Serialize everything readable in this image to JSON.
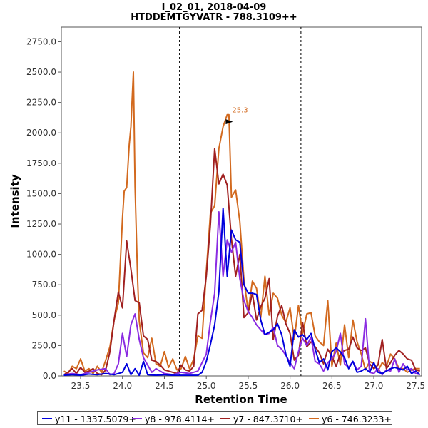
{
  "title": {
    "line1": "I_02_01, 2018-04-09",
    "line2": "HTDDEMTGYVATR - 788.3109++"
  },
  "colors": {
    "y11": "#0000dd",
    "y8": "#8a2be2",
    "y7": "#a02020",
    "y6": "#d2691e",
    "frame": "#555555",
    "marker_lines": "#000000"
  },
  "chart_data": {
    "type": "line",
    "title": "I_02_01, 2018-04-09 / HTDDEMTGYVATR - 788.3109++",
    "xlabel": "Retention Time",
    "ylabel": "Intensity",
    "xlim": [
      23.27,
      27.57
    ],
    "ylim": [
      0,
      2870
    ],
    "x_ticks": [
      23.5,
      24.0,
      24.5,
      25.0,
      25.5,
      26.0,
      26.5,
      27.0,
      27.5
    ],
    "x_tick_labels": [
      "23.5",
      "24.0",
      "24.5",
      "25.0",
      "25.5",
      "26.0",
      "26.5",
      "27.0",
      "27.5"
    ],
    "y_ticks": [
      0,
      250,
      500,
      750,
      1000,
      1250,
      1500,
      1750,
      2000,
      2250,
      2500,
      2750
    ],
    "y_tick_labels": [
      "0.0",
      "250.0",
      "500.0",
      "750.0",
      "1000.0",
      "1250.0",
      "1500.0",
      "1750.0",
      "2000.0",
      "2250.0",
      "2500.0",
      "2750.0"
    ],
    "vertical_markers": [
      24.68,
      26.13
    ],
    "annotation": {
      "text": "25.3",
      "x": 25.3,
      "y": 2150
    },
    "series": [
      {
        "name": "y11 - 1337.5079+",
        "key": "y11",
        "x": [
          23.3,
          23.4,
          23.5,
          23.6,
          23.7,
          23.8,
          23.9,
          24.0,
          24.05,
          24.1,
          24.15,
          24.2,
          24.25,
          24.3,
          24.4,
          24.5,
          24.6,
          24.7,
          24.8,
          24.9,
          24.95,
          25.0,
          25.05,
          25.1,
          25.15,
          25.2,
          25.25,
          25.3,
          25.35,
          25.4,
          25.45,
          25.5,
          25.55,
          25.6,
          25.65,
          25.7,
          25.75,
          25.8,
          25.85,
          25.9,
          25.95,
          26.0,
          26.05,
          26.1,
          26.15,
          26.2,
          26.25,
          26.3,
          26.35,
          26.4,
          26.45,
          26.5,
          26.55,
          26.6,
          26.65,
          26.7,
          26.75,
          26.8,
          26.85,
          26.9,
          26.95,
          27.0,
          27.05,
          27.1,
          27.15,
          27.2,
          27.25,
          27.3,
          27.35,
          27.4,
          27.45,
          27.5,
          27.55
        ],
        "values": [
          5,
          10,
          5,
          15,
          10,
          20,
          10,
          30,
          100,
          10,
          60,
          5,
          120,
          10,
          5,
          10,
          5,
          5,
          5,
          5,
          30,
          120,
          260,
          420,
          690,
          1380,
          820,
          1200,
          1120,
          1100,
          750,
          680,
          680,
          670,
          460,
          340,
          360,
          380,
          430,
          340,
          180,
          80,
          380,
          320,
          340,
          300,
          350,
          220,
          110,
          140,
          50,
          200,
          230,
          200,
          150,
          60,
          120,
          30,
          40,
          60,
          30,
          110,
          30,
          20,
          40,
          60,
          70,
          60,
          50,
          80,
          20,
          40,
          10
        ]
      },
      {
        "name": "y8 - 978.4114+",
        "key": "y8",
        "x": [
          23.3,
          23.4,
          23.5,
          23.6,
          23.7,
          23.8,
          23.85,
          23.9,
          23.95,
          24.0,
          24.05,
          24.1,
          24.15,
          24.2,
          24.25,
          24.3,
          24.35,
          24.4,
          24.5,
          24.6,
          24.7,
          24.8,
          24.9,
          25.0,
          25.05,
          25.1,
          25.15,
          25.2,
          25.25,
          25.3,
          25.35,
          25.4,
          25.45,
          25.5,
          25.55,
          25.6,
          25.65,
          25.7,
          25.75,
          25.8,
          25.85,
          25.9,
          25.95,
          26.0,
          26.05,
          26.1,
          26.15,
          26.2,
          26.25,
          26.3,
          26.35,
          26.4,
          26.45,
          26.5,
          26.55,
          26.6,
          26.65,
          26.7,
          26.75,
          26.8,
          26.85,
          26.9,
          26.95,
          27.0,
          27.05,
          27.1,
          27.15,
          27.2,
          27.25,
          27.3,
          27.35,
          27.4,
          27.45,
          27.5,
          27.55
        ],
        "values": [
          10,
          20,
          10,
          30,
          50,
          60,
          10,
          20,
          100,
          350,
          160,
          420,
          510,
          300,
          150,
          90,
          30,
          60,
          20,
          10,
          30,
          20,
          40,
          180,
          450,
          680,
          1350,
          820,
          1120,
          1020,
          1100,
          800,
          620,
          530,
          480,
          420,
          380,
          340,
          350,
          400,
          250,
          220,
          170,
          110,
          60,
          200,
          310,
          250,
          320,
          120,
          100,
          40,
          110,
          140,
          200,
          350,
          100,
          70,
          120,
          50,
          80,
          470,
          30,
          20,
          60,
          10,
          50,
          40,
          140,
          30,
          100,
          50,
          60,
          20,
          10
        ]
      },
      {
        "name": "y7 - 847.3710+",
        "key": "y7",
        "x": [
          23.3,
          23.35,
          23.4,
          23.45,
          23.5,
          23.55,
          23.6,
          23.65,
          23.7,
          23.75,
          23.8,
          23.85,
          23.9,
          23.95,
          24.0,
          24.05,
          24.1,
          24.15,
          24.2,
          24.25,
          24.3,
          24.35,
          24.4,
          24.45,
          24.5,
          24.55,
          24.6,
          24.65,
          24.7,
          24.75,
          24.8,
          24.85,
          24.9,
          24.95,
          25.0,
          25.05,
          25.1,
          25.15,
          25.2,
          25.25,
          25.3,
          25.35,
          25.4,
          25.45,
          25.5,
          25.55,
          25.6,
          25.65,
          25.7,
          25.75,
          25.8,
          25.85,
          25.9,
          25.95,
          26.0,
          26.05,
          26.1,
          26.15,
          26.2,
          26.25,
          26.3,
          26.35,
          26.4,
          26.45,
          26.5,
          26.55,
          26.6,
          26.65,
          26.7,
          26.75,
          26.8,
          26.85,
          26.9,
          26.95,
          27.0,
          27.05,
          27.1,
          27.15,
          27.2,
          27.25,
          27.3,
          27.35,
          27.4,
          27.45,
          27.5,
          27.55
        ],
        "values": [
          10,
          30,
          60,
          20,
          70,
          30,
          40,
          60,
          20,
          10,
          50,
          200,
          460,
          690,
          560,
          1110,
          880,
          620,
          600,
          330,
          300,
          130,
          120,
          90,
          50,
          40,
          30,
          20,
          90,
          50,
          40,
          80,
          510,
          540,
          820,
          1250,
          1870,
          1580,
          1660,
          1570,
          1130,
          820,
          1000,
          480,
          520,
          680,
          460,
          570,
          640,
          800,
          300,
          490,
          580,
          430,
          350,
          130,
          170,
          440,
          240,
          280,
          240,
          190,
          100,
          220,
          160,
          80,
          180,
          210,
          220,
          320,
          230,
          210,
          230,
          100,
          60,
          90,
          300,
          60,
          110,
          170,
          210,
          180,
          140,
          130,
          50,
          40
        ]
      },
      {
        "name": "y6 - 746.3233+",
        "key": "y6",
        "x": [
          23.3,
          23.35,
          23.4,
          23.45,
          23.5,
          23.55,
          23.6,
          23.65,
          23.7,
          23.75,
          23.8,
          23.85,
          23.9,
          23.95,
          24.0,
          24.02,
          24.05,
          24.08,
          24.1,
          24.13,
          24.15,
          24.18,
          24.2,
          24.25,
          24.3,
          24.35,
          24.4,
          24.45,
          24.5,
          24.55,
          24.6,
          24.65,
          24.7,
          24.75,
          24.8,
          24.85,
          24.9,
          24.95,
          25.0,
          25.05,
          25.1,
          25.15,
          25.2,
          25.25,
          25.27,
          25.3,
          25.35,
          25.4,
          25.45,
          25.5,
          25.55,
          25.6,
          25.65,
          25.7,
          25.75,
          25.8,
          25.85,
          25.9,
          25.95,
          26.0,
          26.05,
          26.1,
          26.15,
          26.2,
          26.25,
          26.3,
          26.35,
          26.4,
          26.45,
          26.5,
          26.55,
          26.6,
          26.65,
          26.7,
          26.75,
          26.8,
          26.85,
          26.9,
          26.95,
          27.0,
          27.05,
          27.1,
          27.15,
          27.2,
          27.25,
          27.3,
          27.35,
          27.4,
          27.45,
          27.5,
          27.55
        ],
        "values": [
          40,
          20,
          80,
          60,
          140,
          40,
          60,
          20,
          80,
          30,
          130,
          240,
          460,
          600,
          1300,
          1520,
          1550,
          1900,
          2050,
          2500,
          1560,
          800,
          450,
          190,
          150,
          310,
          100,
          80,
          200,
          70,
          140,
          50,
          60,
          160,
          60,
          140,
          330,
          310,
          860,
          1340,
          1400,
          1870,
          2050,
          2150,
          2150,
          1470,
          1530,
          1270,
          790,
          530,
          780,
          720,
          480,
          820,
          500,
          680,
          640,
          500,
          440,
          560,
          300,
          580,
          350,
          510,
          520,
          330,
          280,
          250,
          620,
          80,
          270,
          90,
          420,
          150,
          460,
          280,
          180,
          50,
          120,
          100,
          40,
          110,
          80,
          180,
          140,
          60,
          60,
          30,
          50,
          60,
          60
        ]
      }
    ]
  }
}
